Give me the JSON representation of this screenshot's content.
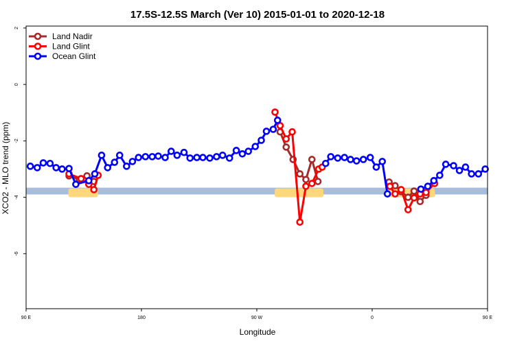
{
  "chart_data": {
    "type": "line",
    "title": "17.5S-12.5S March (Ver 10)   2015-01-01 to 2020-12-18",
    "xlabel": "Longitude",
    "ylabel": "XCO2 - MLO trend (ppm)",
    "x_unit": "degrees longitude",
    "xlim": [
      "90 E",
      "180 (wrapping through 90 W, 0, 90 E to 180)"
    ],
    "xticks": [
      {
        "lon": 90,
        "label": "90 E"
      },
      {
        "lon": 180,
        "label": "180"
      },
      {
        "lon": -90,
        "label": "90 W"
      },
      {
        "lon": 0,
        "label": "0"
      },
      {
        "lon": 90,
        "label": "90 E",
        "repeat": true
      },
      {
        "lon": 180,
        "label": "180",
        "repeat": true
      }
    ],
    "ylim": [
      -7.95,
      2.07
    ],
    "yticks": [
      2,
      0,
      -2,
      -4,
      -6
    ],
    "ytick_labels": [
      "2",
      "0",
      "-2",
      "-4",
      "-6"
    ],
    "grid": false,
    "legend_placement": "top-left",
    "background_band": {
      "ymin": -3.9,
      "ymax": -3.66,
      "color": "#a8bcdc",
      "land_color": "#fdd77c",
      "land_ranges": [
        [
          123,
          146
        ],
        [
          -76,
          -38
        ],
        [
          13,
          49
        ]
      ]
    },
    "series": [
      {
        "name": "Land Nadir",
        "color": "#a52a2a",
        "points": [
          [
            123.5,
            -3.24
          ],
          [
            131.5,
            -3.37
          ],
          [
            137.5,
            -3.24
          ],
          [
            142.9,
            -3.44
          ],
          [
            -71.8,
            -1.68
          ],
          [
            -67.1,
            -2.22
          ],
          [
            -61.7,
            -2.66
          ],
          [
            -56.4,
            -3.17
          ],
          [
            -51.7,
            -3.37
          ],
          [
            -47.0,
            -2.66
          ],
          [
            -42.3,
            -3.44
          ],
          [
            13.2,
            -3.46
          ],
          [
            17.9,
            -3.59
          ],
          [
            22.6,
            -3.8
          ],
          [
            28.0,
            -4.0
          ],
          [
            32.7,
            -3.78
          ],
          [
            37.4,
            -4.15
          ],
          [
            42.0,
            -3.93
          ]
        ]
      },
      {
        "name": "Land Glint",
        "color": "#ff0000",
        "points": [
          [
            123.5,
            -3.17
          ],
          [
            132.9,
            -3.34
          ],
          [
            138.9,
            -3.54
          ],
          [
            142.9,
            -3.73
          ],
          [
            146.2,
            -3.22
          ],
          [
            -75.8,
            -0.98
          ],
          [
            -71.8,
            -1.46
          ],
          [
            -67.1,
            -1.93
          ],
          [
            -62.4,
            -1.68
          ],
          [
            -56.4,
            -4.88
          ],
          [
            -51.7,
            -3.61
          ],
          [
            -47.0,
            -3.51
          ],
          [
            -41.7,
            -3.0
          ],
          [
            -39.0,
            -2.93
          ],
          [
            13.9,
            -3.61
          ],
          [
            17.9,
            -3.88
          ],
          [
            22.6,
            -3.73
          ],
          [
            28.0,
            -4.44
          ],
          [
            32.7,
            -4.02
          ],
          [
            37.4,
            -3.88
          ],
          [
            42.0,
            -3.83
          ],
          [
            48.7,
            -3.51
          ]
        ]
      },
      {
        "name": "Ocean Glint",
        "color": "#0000ff",
        "points": [
          [
            93.3,
            -2.9
          ],
          [
            98.7,
            -2.95
          ],
          [
            103.4,
            -2.78
          ],
          [
            108.7,
            -2.8
          ],
          [
            113.4,
            -2.95
          ],
          [
            118.1,
            -3.0
          ],
          [
            123.5,
            -2.98
          ],
          [
            128.8,
            -3.54
          ],
          [
            138.9,
            -3.41
          ],
          [
            143.6,
            -3.17
          ],
          [
            148.9,
            -2.51
          ],
          [
            153.6,
            -2.95
          ],
          [
            159.0,
            -2.76
          ],
          [
            163.0,
            -2.51
          ],
          [
            168.4,
            -2.9
          ],
          [
            173.0,
            -2.73
          ],
          [
            177.7,
            -2.59
          ],
          [
            -176.9,
            -2.56
          ],
          [
            -171.6,
            -2.56
          ],
          [
            -166.9,
            -2.54
          ],
          [
            -161.5,
            -2.59
          ],
          [
            -156.8,
            -2.37
          ],
          [
            -152.2,
            -2.51
          ],
          [
            -146.8,
            -2.41
          ],
          [
            -142.1,
            -2.61
          ],
          [
            -136.8,
            -2.59
          ],
          [
            -132.1,
            -2.59
          ],
          [
            -126.7,
            -2.61
          ],
          [
            -121.4,
            -2.56
          ],
          [
            -116.7,
            -2.51
          ],
          [
            -111.3,
            -2.61
          ],
          [
            -106.0,
            -2.34
          ],
          [
            -101.3,
            -2.46
          ],
          [
            -96.6,
            -2.37
          ],
          [
            -91.2,
            -2.2
          ],
          [
            -86.5,
            -1.98
          ],
          [
            -82.5,
            -1.66
          ],
          [
            -77.2,
            -1.59
          ],
          [
            -73.8,
            -1.27
          ],
          [
            -36.3,
            -2.8
          ],
          [
            -32.3,
            -2.56
          ],
          [
            -26.9,
            -2.61
          ],
          [
            -21.6,
            -2.59
          ],
          [
            -16.9,
            -2.66
          ],
          [
            -12.2,
            -2.71
          ],
          [
            -6.9,
            -2.66
          ],
          [
            -1.5,
            -2.59
          ],
          [
            3.2,
            -2.93
          ],
          [
            7.9,
            -2.73
          ],
          [
            11.9,
            -3.88
          ],
          [
            38.0,
            -3.71
          ],
          [
            43.4,
            -3.61
          ],
          [
            48.1,
            -3.41
          ],
          [
            52.7,
            -3.22
          ],
          [
            57.4,
            -2.83
          ],
          [
            63.5,
            -2.88
          ],
          [
            68.1,
            -3.05
          ],
          [
            72.8,
            -2.93
          ],
          [
            77.5,
            -3.17
          ],
          [
            82.9,
            -3.17
          ],
          [
            88.2,
            -3.0
          ]
        ]
      }
    ]
  }
}
